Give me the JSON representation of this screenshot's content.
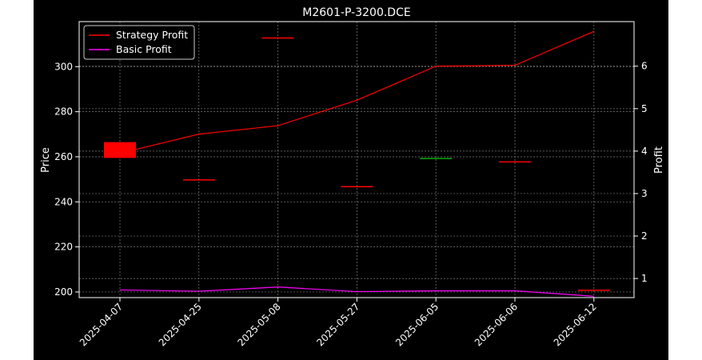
{
  "chart_data": {
    "type": "candlestick",
    "title": "M2601-P-3200.DCE",
    "xlabel": "",
    "ylabel": "Price",
    "y2label": "Profit",
    "categories": [
      "2025-04-07",
      "2025-04-25",
      "2025-05-08",
      "2025-05-27",
      "2025-06-05",
      "2025-06-06",
      "2025-06-12"
    ],
    "ylim": [
      197.5,
      320
    ],
    "y2lim": [
      0.55,
      7.05
    ],
    "yticks": [
      200,
      220,
      240,
      260,
      280,
      300
    ],
    "y2ticks": [
      1,
      2,
      3,
      4,
      5,
      6
    ],
    "grid": true,
    "legend_position": "top-left",
    "candles": [
      {
        "x": "2025-04-07",
        "open": 266.5,
        "high": 266.5,
        "low": 259.5,
        "close": 259.5,
        "color": "#ff0000"
      },
      {
        "x": "2025-04-25",
        "open": 250,
        "high": 250,
        "low": 250,
        "close": 250,
        "color": "#ff0000"
      },
      {
        "x": "2025-05-08",
        "open": 313,
        "high": 313,
        "low": 313,
        "close": 313,
        "color": "#ff0000"
      },
      {
        "x": "2025-05-27",
        "open": 247,
        "high": 247,
        "low": 247,
        "close": 247,
        "color": "#ff0000"
      },
      {
        "x": "2025-06-05",
        "open": 259.5,
        "high": 259.5,
        "low": 259.5,
        "close": 259.5,
        "color": "#00aa00"
      },
      {
        "x": "2025-06-06",
        "open": 258,
        "high": 258,
        "low": 258,
        "close": 258,
        "color": "#ff0000"
      },
      {
        "x": "2025-06-12",
        "open": 201,
        "high": 201,
        "low": 201,
        "close": 201,
        "color": "#ff0000"
      }
    ],
    "series": [
      {
        "name": "Strategy Profit",
        "axis": "right",
        "color": "#ff0000",
        "values": [
          3.95,
          4.4,
          4.6,
          5.2,
          6.0,
          6.02,
          6.82
        ]
      },
      {
        "name": "Basic Profit",
        "axis": "right",
        "color": "#ff00ff",
        "values": [
          0.73,
          0.7,
          0.8,
          0.69,
          0.71,
          0.71,
          0.58
        ]
      }
    ]
  }
}
